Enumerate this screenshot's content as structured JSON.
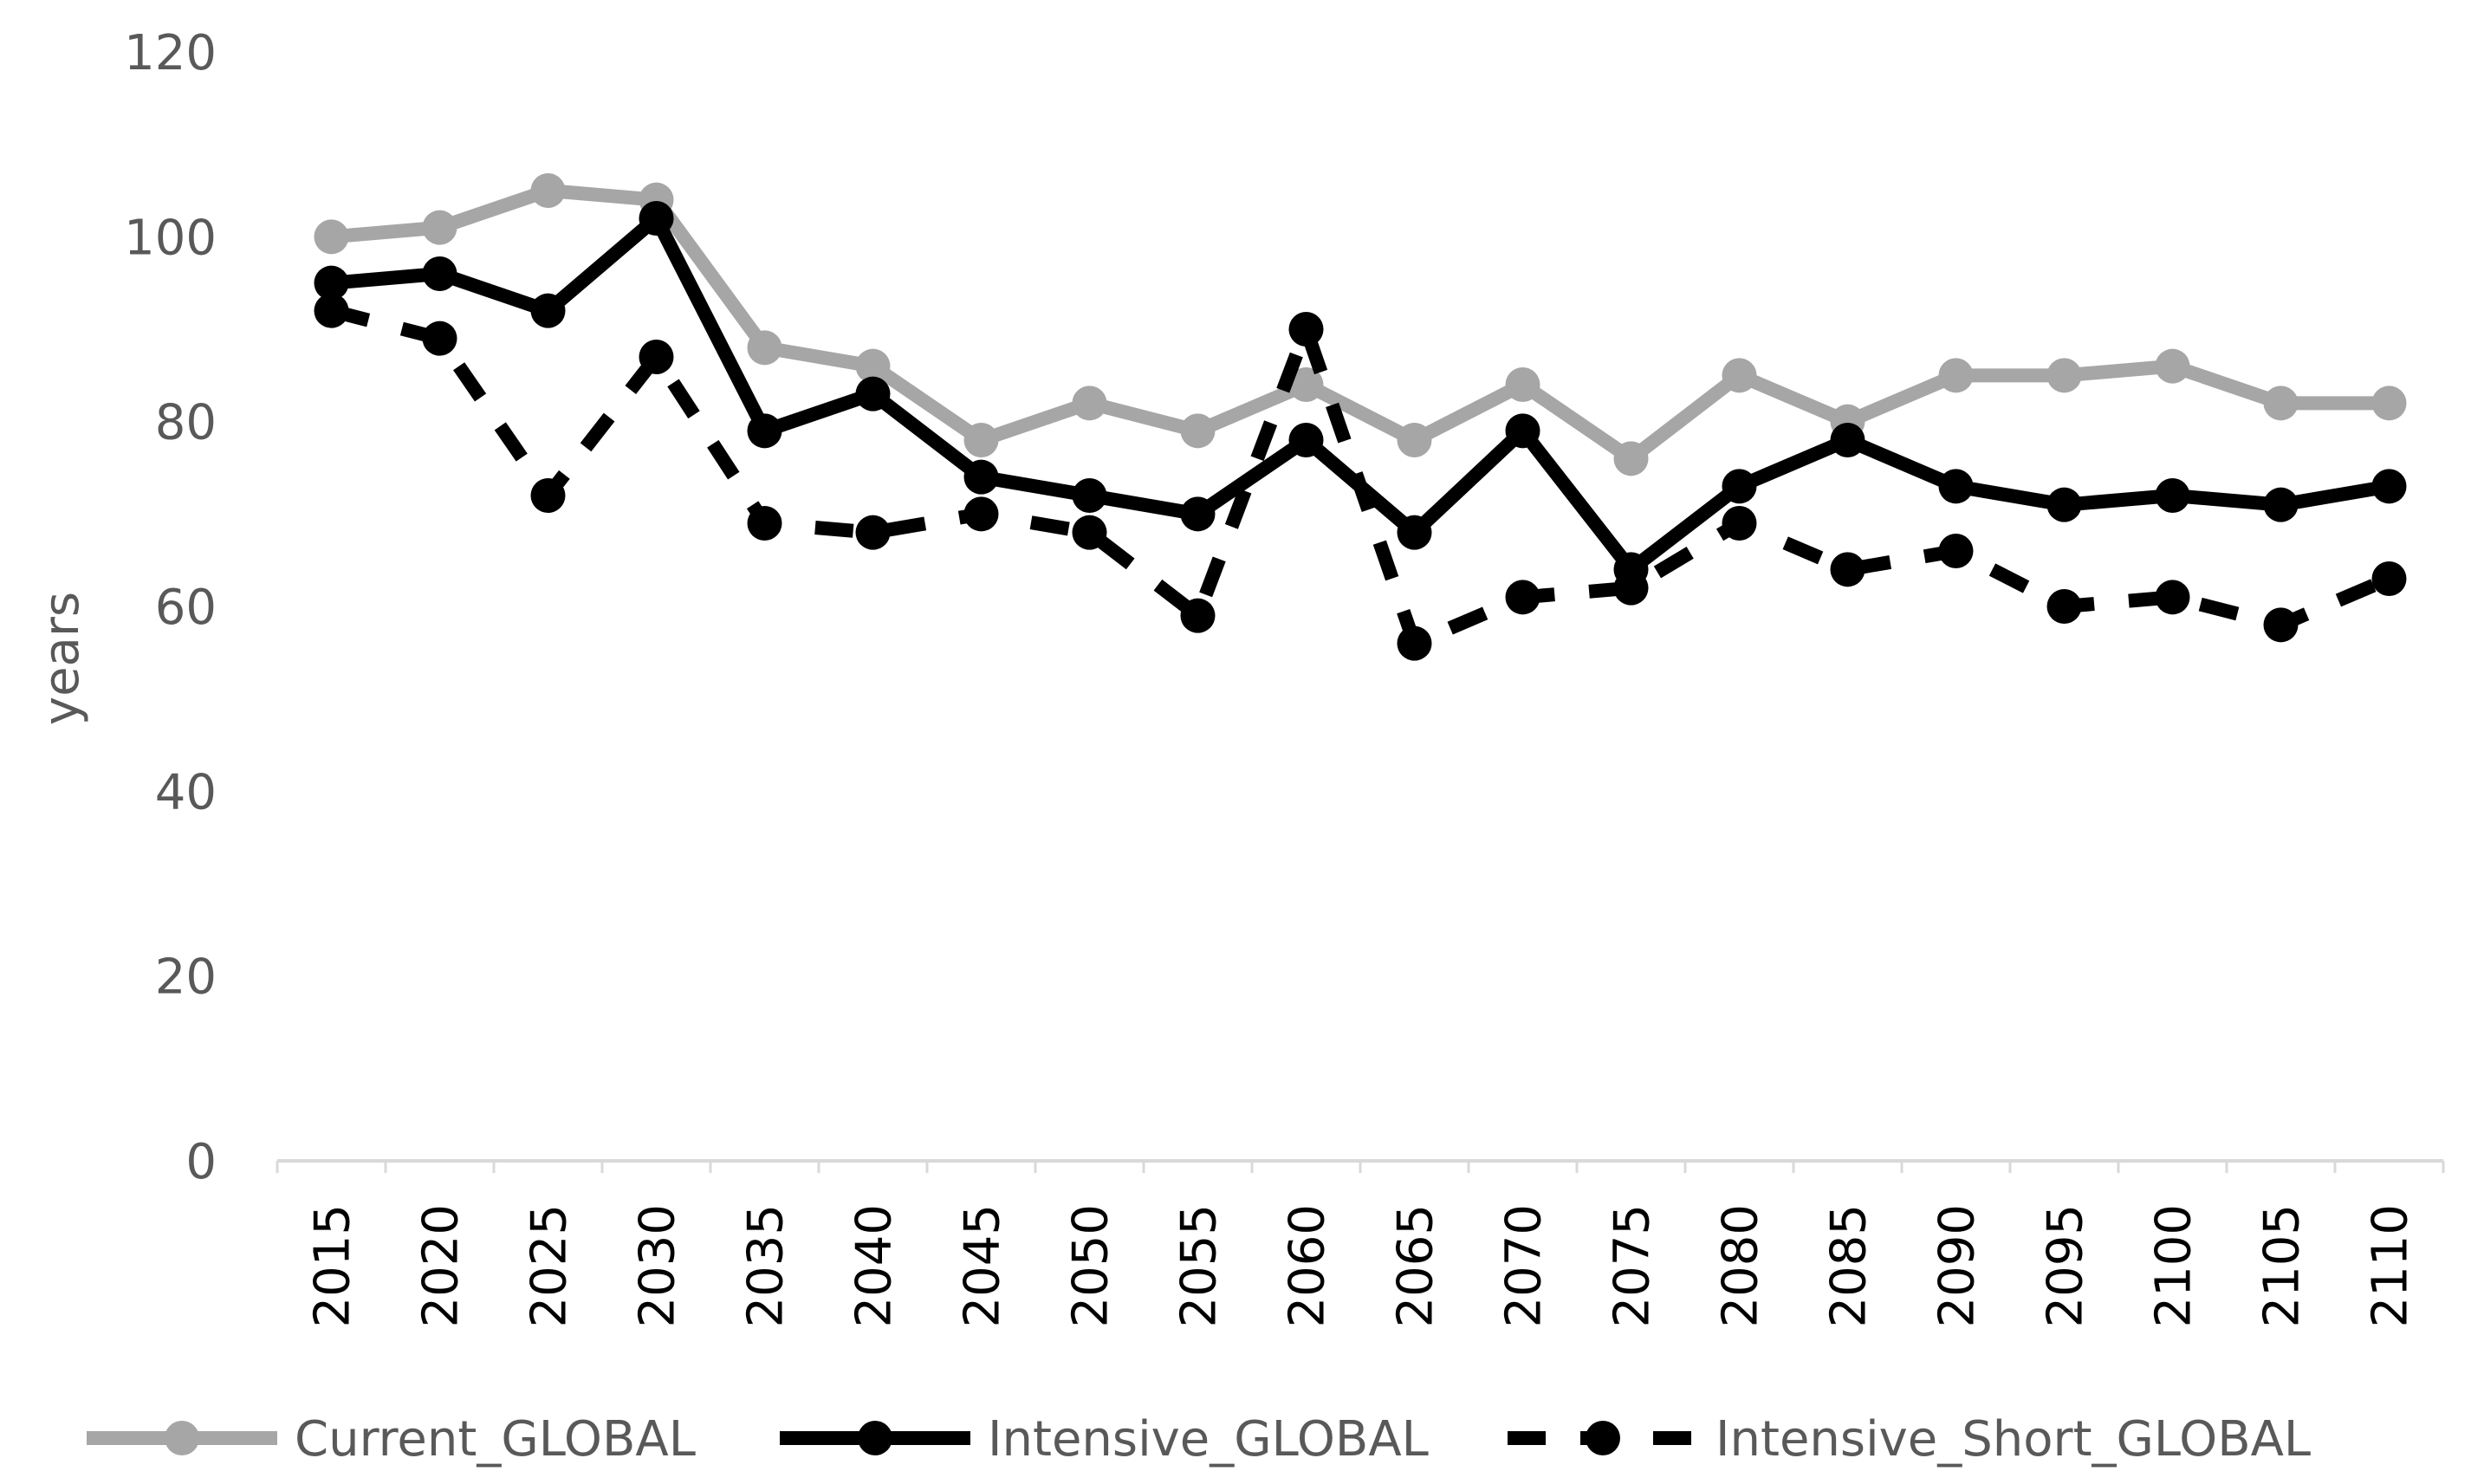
{
  "chart_data": {
    "type": "line",
    "title": "",
    "xlabel": "",
    "ylabel": "years",
    "ylim": [
      0,
      120
    ],
    "yticks": [
      0,
      20,
      40,
      60,
      80,
      100,
      120
    ],
    "grid": false,
    "legend_position": "bottom",
    "categories": [
      "2015",
      "2020",
      "2025",
      "2030",
      "2035",
      "2040",
      "2045",
      "2050",
      "2055",
      "2060",
      "2065",
      "2070",
      "2075",
      "2080",
      "2085",
      "2090",
      "2095",
      "2100",
      "2105",
      "2110"
    ],
    "series": [
      {
        "name": "Current_GLOBAL",
        "color": "#a6a6a6",
        "style": "solid",
        "values": [
          100,
          101,
          105,
          104,
          88,
          86,
          78,
          82,
          79,
          84,
          78,
          84,
          76,
          85,
          80,
          85,
          85,
          86,
          82,
          82
        ]
      },
      {
        "name": "Intensive_GLOBAL",
        "color": "#000000",
        "style": "solid",
        "values": [
          95,
          96,
          92,
          102,
          79,
          83,
          74,
          72,
          70,
          78,
          68,
          79,
          64,
          73,
          78,
          73,
          71,
          72,
          71,
          73
        ]
      },
      {
        "name": "Intensive_Short_GLOBAL",
        "color": "#000000",
        "style": "dashed",
        "values": [
          92,
          89,
          72,
          87,
          69,
          68,
          70,
          68,
          59,
          90,
          56,
          61,
          62,
          69,
          64,
          66,
          60,
          61,
          58,
          63
        ]
      }
    ]
  }
}
